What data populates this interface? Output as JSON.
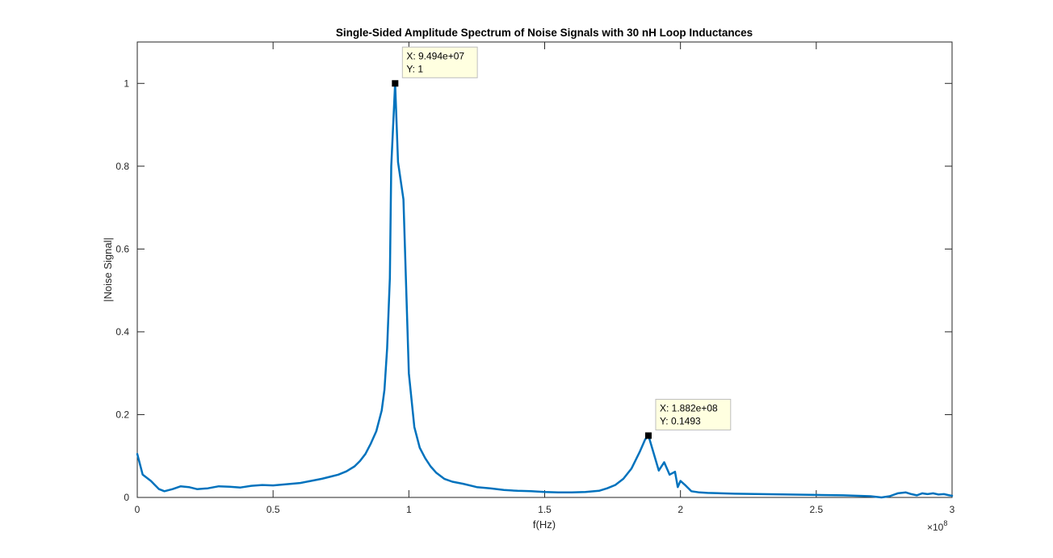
{
  "chart_data": {
    "type": "line",
    "title": "Single-Sided Amplitude Spectrum of Noise Signals with 30 nH Loop Inductances",
    "xlabel": "f(Hz)",
    "ylabel": "|Noise Signal|",
    "x_exponent_label": "×10",
    "x_exponent_power": "8",
    "xlim": [
      0,
      3
    ],
    "ylim": [
      0,
      1.1
    ],
    "xticks": [
      0,
      0.5,
      1,
      1.5,
      2,
      2.5,
      3
    ],
    "xtick_labels": [
      "0",
      "0.5",
      "1",
      "1.5",
      "2",
      "2.5",
      "3"
    ],
    "yticks": [
      0,
      0.2,
      0.4,
      0.6,
      0.8,
      1
    ],
    "ytick_labels": [
      "0",
      "0.2",
      "0.4",
      "0.6",
      "0.8",
      "1"
    ],
    "grid": false,
    "series": [
      {
        "color": "#0072BD",
        "x": [
          0,
          0.02,
          0.05,
          0.08,
          0.1,
          0.13,
          0.16,
          0.19,
          0.22,
          0.26,
          0.3,
          0.34,
          0.38,
          0.42,
          0.46,
          0.5,
          0.55,
          0.6,
          0.64,
          0.68,
          0.71,
          0.74,
          0.77,
          0.8,
          0.82,
          0.84,
          0.86,
          0.88,
          0.9,
          0.91,
          0.92,
          0.93,
          0.935,
          0.9494,
          0.96,
          0.98,
          1.0,
          1.02,
          1.04,
          1.06,
          1.08,
          1.1,
          1.13,
          1.16,
          1.2,
          1.25,
          1.3,
          1.35,
          1.4,
          1.45,
          1.5,
          1.55,
          1.6,
          1.65,
          1.7,
          1.73,
          1.76,
          1.79,
          1.82,
          1.85,
          1.87,
          1.882,
          1.9,
          1.92,
          1.94,
          1.96,
          1.98,
          1.99,
          2.0,
          2.02,
          2.04,
          2.07,
          2.1,
          2.2,
          2.3,
          2.4,
          2.5,
          2.6,
          2.7,
          2.74,
          2.77,
          2.8,
          2.83,
          2.85,
          2.87,
          2.89,
          2.91,
          2.93,
          2.95,
          2.97,
          2.99,
          3.0
        ],
        "y": [
          0.105,
          0.055,
          0.04,
          0.02,
          0.015,
          0.02,
          0.027,
          0.025,
          0.02,
          0.022,
          0.027,
          0.026,
          0.024,
          0.028,
          0.03,
          0.029,
          0.032,
          0.035,
          0.04,
          0.045,
          0.05,
          0.055,
          0.063,
          0.075,
          0.088,
          0.105,
          0.13,
          0.16,
          0.21,
          0.26,
          0.36,
          0.53,
          0.8,
          1.0,
          0.81,
          0.72,
          0.3,
          0.17,
          0.12,
          0.095,
          0.075,
          0.06,
          0.045,
          0.038,
          0.033,
          0.025,
          0.022,
          0.018,
          0.016,
          0.015,
          0.013,
          0.012,
          0.012,
          0.013,
          0.016,
          0.022,
          0.03,
          0.045,
          0.07,
          0.11,
          0.14,
          0.1493,
          0.11,
          0.065,
          0.085,
          0.055,
          0.062,
          0.025,
          0.04,
          0.028,
          0.015,
          0.012,
          0.011,
          0.009,
          0.008,
          0.007,
          0.006,
          0.005,
          0.003,
          0.0,
          0.003,
          0.01,
          0.012,
          0.008,
          0.005,
          0.01,
          0.008,
          0.01,
          0.007,
          0.008,
          0.005,
          0.004
        ]
      }
    ],
    "datatips": [
      {
        "x": 0.9494,
        "y": 1,
        "line1": "X: 9.494e+07",
        "line2": "Y: 1"
      },
      {
        "x": 1.882,
        "y": 0.1493,
        "line1": "X: 1.882e+08",
        "line2": "Y: 0.1493"
      }
    ]
  }
}
